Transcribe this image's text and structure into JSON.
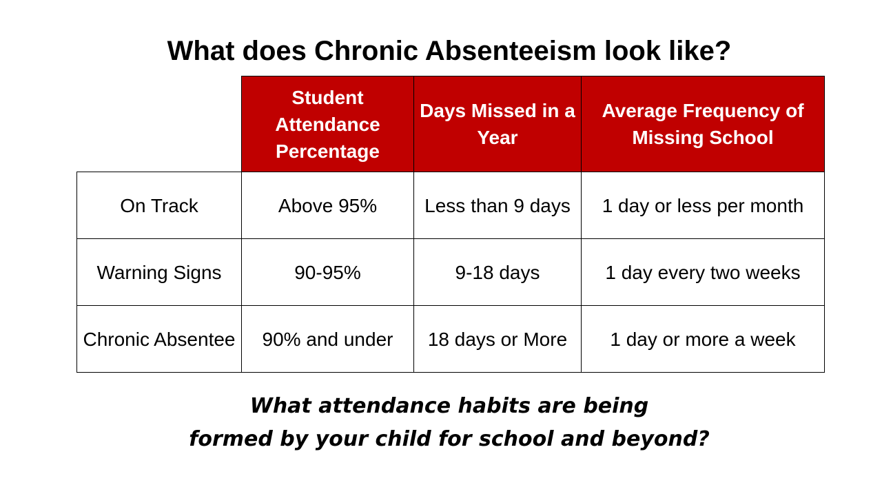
{
  "slide": {
    "title": "What does Chronic Absenteeism look like?",
    "question_line1": "What attendance habits are being",
    "question_line2": "formed by your child for school and beyond?"
  },
  "table": {
    "headers": [
      "",
      "Student Attendance Percentage",
      "Days Missed in a Year",
      "Average Frequency of Missing School"
    ],
    "rows": [
      [
        "On Track",
        "Above 95%",
        "Less than 9 days",
        "1 day or less per month"
      ],
      [
        "Warning Signs",
        "90-95%",
        "9-18 days",
        "1 day every two weeks"
      ],
      [
        "Chronic Absentee",
        "90% and under",
        "18 days or More",
        "1 day or more a week"
      ]
    ]
  },
  "colors": {
    "header_background": "#c00000",
    "header_text": "#ffffff",
    "body_text": "#000000",
    "border": "#000000"
  }
}
